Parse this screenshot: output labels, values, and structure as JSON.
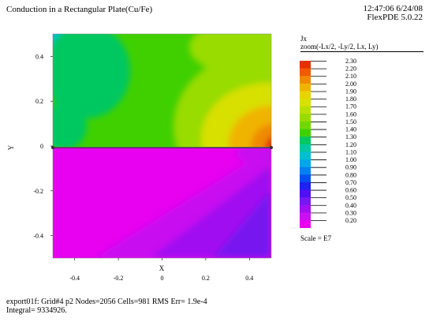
{
  "header": {
    "title": "Conduction in a Rectangular Plate(Cu/Fe)",
    "time": "12:47:06 6/24/08",
    "version": "FlexPDE 5.0.22"
  },
  "legend": {
    "variable": "Jx",
    "expression": "zoom(-Lx/2, -Ly/2, Lx, Ly)",
    "scale_note": "Scale = E7",
    "levels": [
      "2.30",
      "2.20",
      "2.10",
      "2.00",
      "1.90",
      "1.80",
      "1.70",
      "1.60",
      "1.50",
      "1.40",
      "1.30",
      "1.20",
      "1.10",
      "1.00",
      "0.90",
      "0.80",
      "0.70",
      "0.60",
      "0.50",
      "0.40",
      "0.30",
      "0.20"
    ],
    "colors": [
      "#e53000",
      "#f05a00",
      "#f08a00",
      "#f0b400",
      "#e8d400",
      "#d8e000",
      "#b8e000",
      "#98dc00",
      "#70d800",
      "#40d000",
      "#00c860",
      "#00c8a0",
      "#00c0d0",
      "#00a8e8",
      "#0080f0",
      "#0050f0",
      "#2020f0",
      "#5010f0",
      "#7818f0",
      "#a010f0",
      "#c810f0",
      "#e800f0"
    ]
  },
  "footer": {
    "line1": "export01f:  Grid#4  p2  Nodes=2056 Cells=981 RMS Err= 1.9e-4",
    "line2": "Integral=  9334926."
  },
  "chart_data": {
    "type": "heatmap",
    "title": "Conduction in a Rectangular Plate(Cu/Fe)",
    "xlabel": "X",
    "ylabel": "Y",
    "xlim": [
      -0.5,
      0.5
    ],
    "ylim": [
      -0.5,
      0.5
    ],
    "x_ticks": [
      "-0.4",
      "-0.2",
      "0",
      "0.2",
      "0.4"
    ],
    "y_ticks": [
      "0.4",
      "0.2",
      "0",
      "-0.2",
      "-0.4"
    ],
    "x_tick_values": [
      -0.4,
      -0.2,
      0,
      0.2,
      0.4
    ],
    "y_tick_values": [
      0.4,
      0.2,
      0,
      -0.2,
      -0.4
    ],
    "colorbar_levels": [
      2.3,
      2.2,
      2.1,
      2.0,
      1.9,
      1.8,
      1.7,
      1.6,
      1.5,
      1.4,
      1.3,
      1.2,
      1.1,
      1.0,
      0.9,
      0.8,
      0.7,
      0.6,
      0.5,
      0.4,
      0.3,
      0.2
    ],
    "colorbar_scale": "E7",
    "regions": [
      {
        "y_range": [
          0,
          0.5
        ],
        "value_range": [
          1.1,
          2.3
        ],
        "min_at": "top-left",
        "max_at": "bottom-right"
      },
      {
        "y_range": [
          -0.5,
          0
        ],
        "value_range": [
          0.2,
          0.7
        ],
        "min_at": "left",
        "max_at": "bottom-right"
      }
    ],
    "grid": false
  }
}
